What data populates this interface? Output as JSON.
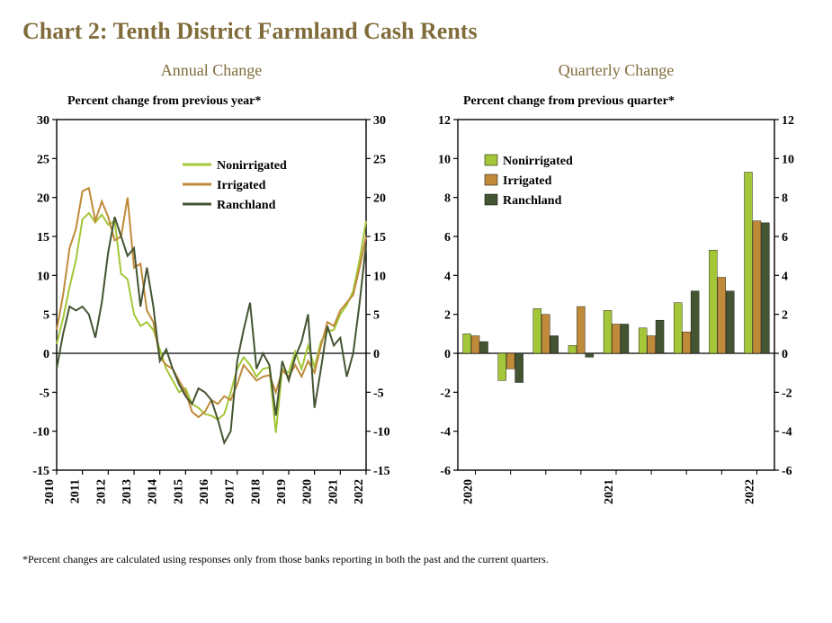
{
  "title": "Chart 2: Tenth District Farmland Cash Rents",
  "title_fontsize": 26,
  "title_color": "#806c3a",
  "subtitle_color": "#806c3a",
  "background_color": "#ffffff",
  "axis_color": "#000000",
  "tick_font_size": 14,
  "legend_fontsize": 14,
  "footnote": "*Percent changes are calculated using responses only from those banks reporting in both the past and the current quarters.",
  "annual": {
    "subtitle": "Annual Change",
    "axis_title": "Percent change from previous year*",
    "ylim": [
      -15,
      30
    ],
    "ytick_step": 5,
    "xticks": [
      "2010",
      "2011",
      "2012",
      "2013",
      "2014",
      "2015",
      "2016",
      "2017",
      "2018",
      "2019",
      "2020",
      "2021",
      "2022"
    ],
    "line_width": 2,
    "series": [
      {
        "name": "Nonirrigated",
        "color": "#a4c639",
        "values": [
          1.2,
          4.5,
          8.5,
          12.0,
          17.2,
          18.0,
          16.8,
          17.8,
          16.5,
          17.0,
          10.2,
          9.5,
          5.0,
          3.5,
          4.0,
          3.0,
          0.5,
          -2.0,
          -3.5,
          -5.0,
          -4.5,
          -6.5,
          -7.0,
          -7.8,
          -8.0,
          -8.5,
          -7.8,
          -5.0,
          -2.0,
          -0.5,
          -1.5,
          -3.0,
          -2.0,
          -1.8,
          -10.2,
          -2.0,
          -2.5,
          0.2,
          -2.0,
          1.0,
          -1.8,
          1.5,
          2.8,
          3.0,
          5.0,
          6.2,
          8.0,
          12.0,
          17.0
        ]
      },
      {
        "name": "Irrigated",
        "color": "#bf8a3a",
        "values": [
          3.0,
          7.5,
          13.5,
          16.0,
          20.8,
          21.2,
          17.0,
          19.5,
          17.5,
          14.5,
          15.0,
          20.0,
          11.0,
          11.5,
          5.5,
          4.0,
          -0.5,
          -1.5,
          -2.0,
          -3.5,
          -5.0,
          -7.5,
          -8.2,
          -7.5,
          -6.0,
          -6.5,
          -5.5,
          -6.0,
          -4.0,
          -1.5,
          -2.5,
          -3.5,
          -3.0,
          -2.8,
          -5.0,
          -2.2,
          -3.0,
          -1.5,
          -3.0,
          -1.0,
          -2.5,
          1.0,
          4.0,
          3.5,
          5.5,
          6.5,
          7.5,
          11.0,
          15.0
        ]
      },
      {
        "name": "Ranchland",
        "color": "#445533",
        "values": [
          -2.0,
          2.5,
          6.0,
          5.5,
          6.0,
          5.0,
          2.0,
          6.5,
          13.0,
          17.5,
          15.0,
          12.5,
          13.5,
          6.0,
          11.0,
          6.0,
          -1.0,
          0.5,
          -2.0,
          -4.0,
          -5.5,
          -6.5,
          -4.5,
          -5.0,
          -6.0,
          -8.5,
          -11.5,
          -10.0,
          -1.0,
          3.0,
          6.5,
          -2.0,
          0.0,
          -1.5,
          -8.0,
          -1.0,
          -3.5,
          -0.5,
          1.5,
          5.0,
          -7.0,
          -2.0,
          3.5,
          1.0,
          2.0,
          -3.0,
          0.0,
          6.5,
          14.0
        ]
      }
    ]
  },
  "quarterly": {
    "subtitle": "Quarterly Change",
    "axis_title": "Percent change from previous quarter*",
    "ylim": [
      -6,
      12
    ],
    "ytick_step": 2,
    "xticks": [
      "2020",
      "2021",
      "2022"
    ],
    "bar_width": 0.23,
    "num_groups": 9,
    "xtick_positions": [
      0,
      4,
      8
    ],
    "series": [
      {
        "name": "Nonirrigated",
        "color": "#a4c639",
        "values": [
          1.0,
          -1.4,
          2.3,
          0.4,
          2.2,
          1.3,
          2.6,
          5.3,
          9.3
        ]
      },
      {
        "name": "Irrigated",
        "color": "#bf8a3a",
        "values": [
          0.9,
          -0.8,
          2.0,
          2.4,
          1.5,
          0.9,
          1.1,
          3.9,
          6.8
        ]
      },
      {
        "name": "Ranchland",
        "color": "#445533",
        "values": [
          0.6,
          -1.5,
          0.9,
          -0.2,
          1.5,
          1.7,
          3.2,
          3.2,
          6.7
        ]
      }
    ]
  }
}
